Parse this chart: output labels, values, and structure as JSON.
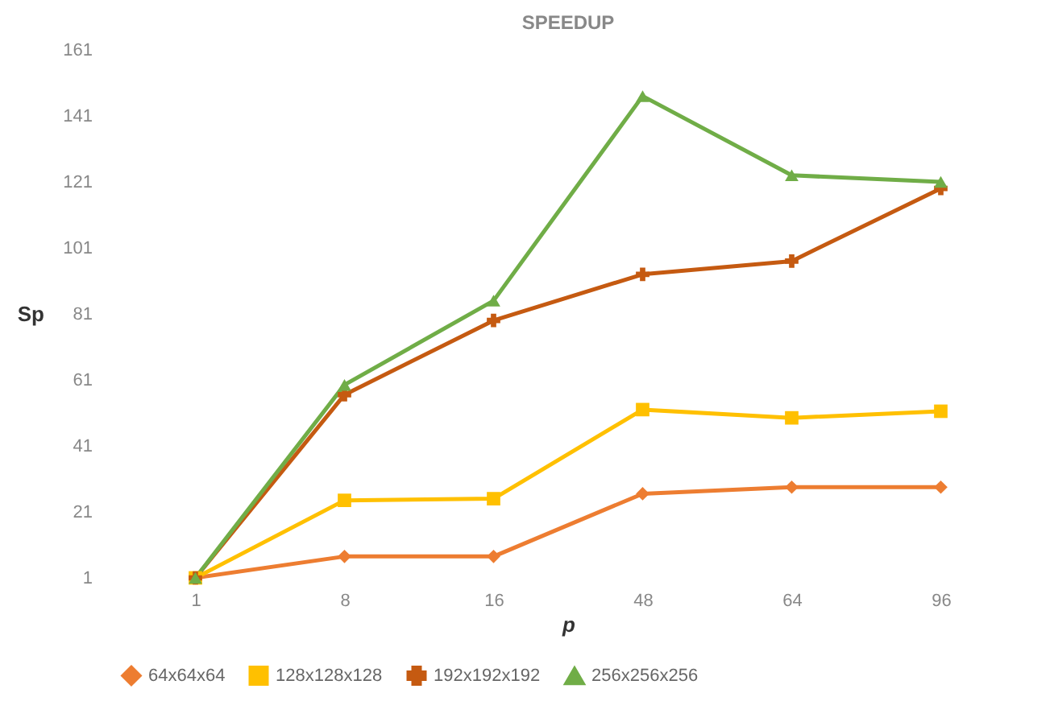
{
  "chart_data": {
    "type": "line",
    "title": "SPEEDUP",
    "xlabel": "p",
    "ylabel": "Sp",
    "categories": [
      "1",
      "8",
      "16",
      "48",
      "64",
      "96"
    ],
    "series": [
      {
        "name": "64x64x64",
        "color": "#ed7d31",
        "marker": "diamond",
        "values": [
          1,
          7.5,
          7.5,
          26.5,
          28.5,
          28.5
        ]
      },
      {
        "name": "128x128x128",
        "color": "#ffc000",
        "marker": "square",
        "values": [
          1,
          24.5,
          25,
          52,
          49.5,
          51.5
        ]
      },
      {
        "name": "192x192x192",
        "color": "#c55a11",
        "marker": "cross",
        "values": [
          1,
          56.5,
          79,
          93,
          97,
          119
        ]
      },
      {
        "name": "256x256x256",
        "color": "#70ad47",
        "marker": "triangle",
        "values": [
          1,
          59.5,
          85,
          147,
          123,
          121
        ]
      }
    ],
    "ylim": [
      1,
      161
    ],
    "yticks": [
      1,
      21,
      41,
      61,
      81,
      101,
      121,
      141,
      161
    ],
    "grid": false,
    "legend": "bottom",
    "line_style": "solid"
  }
}
